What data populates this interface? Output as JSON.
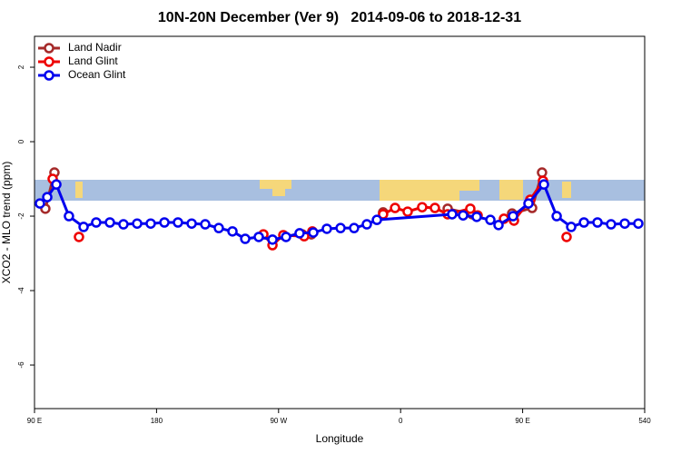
{
  "chart_data": {
    "type": "line",
    "title": "10N-20N December (Ver 9)   2014-09-06 to 2018-12-31",
    "x_label": "Longitude",
    "y_label": "XCO2 - MLO trend (ppm)",
    "xlim": [
      90,
      540
    ],
    "ylim": [
      2.83,
      -7.17
    ],
    "xticks": [
      {
        "value": 90,
        "label": "90 E"
      },
      180,
      {
        "value": 270,
        "label": "90 W"
      },
      {
        "value": 360,
        "label": "0"
      },
      {
        "value": 450,
        "label": "90 E"
      },
      540
    ],
    "yticks": [
      2,
      0,
      -2,
      -4,
      -6
    ],
    "legend": "top-left",
    "series": [
      {
        "name": "Land Nadir",
        "color": "#a52a2a",
        "x": [
          98.0,
          104.7,
          null,
          287.5,
          294.2,
          null,
          347.1,
          null,
          394.7,
          412.8,
          null,
          442.2,
          457.0,
          464.3
        ],
        "values": [
          -1.8,
          -0.83,
          null,
          -2.49,
          -2.49,
          null,
          -1.9,
          null,
          -1.8,
          -1.95,
          null,
          -1.93,
          -1.78,
          -0.83
        ]
      },
      {
        "name": "Land Glint",
        "color": "#ee0000",
        "x": [
          103.4,
          null,
          122.8,
          null,
          258.8,
          265.5,
          273.5,
          288.9,
          294.9,
          null,
          347.1,
          355.9,
          365.2,
          375.9,
          385.3,
          394.7,
          411.4,
          416.8,
          null,
          436.2,
          443.6,
          455.6,
          465.0,
          null,
          482.4
        ],
        "values": [
          -1.0,
          null,
          -2.56,
          null,
          -2.49,
          -2.78,
          -2.51,
          -2.54,
          -2.41,
          null,
          -1.95,
          -1.78,
          -1.88,
          -1.76,
          -1.78,
          -1.95,
          -1.8,
          -1.98,
          null,
          -2.07,
          -2.12,
          -1.56,
          -1.05,
          null,
          -2.56
        ]
      },
      {
        "name": "Ocean Glint",
        "color": "#0000ee",
        "x": [
          94.0,
          99.4,
          106.1,
          115.4,
          126.2,
          135.5,
          145.6,
          155.6,
          165.7,
          175.7,
          185.8,
          195.8,
          205.9,
          215.9,
          225.9,
          236.0,
          245.4,
          255.4,
          265.5,
          275.5,
          285.5,
          295.6,
          305.6,
          315.7,
          325.7,
          335.1,
          342.5,
          398.0,
          406.1,
          416.1,
          426.2,
          432.2,
          442.9,
          454.3,
          465.7,
          475.1,
          485.8,
          495.2,
          505.2,
          515.2,
          525.3,
          535.3
        ],
        "values": [
          -1.66,
          -1.49,
          -1.15,
          -2.0,
          -2.29,
          -2.17,
          -2.17,
          -2.22,
          -2.2,
          -2.2,
          -2.17,
          -2.17,
          -2.2,
          -2.22,
          -2.32,
          -2.41,
          -2.61,
          -2.56,
          -2.63,
          -2.56,
          -2.46,
          -2.44,
          -2.34,
          -2.32,
          -2.32,
          -2.22,
          -2.1,
          -1.95,
          -1.98,
          -2.02,
          -2.1,
          -2.24,
          -2.0,
          -1.66,
          -1.15,
          -2.0,
          -2.29,
          -2.17,
          -2.17,
          -2.22,
          -2.2,
          -2.2
        ]
      }
    ]
  }
}
